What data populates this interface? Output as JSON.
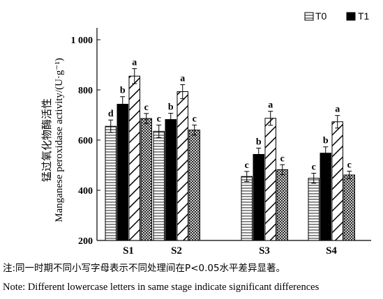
{
  "chart_data": {
    "type": "bar",
    "ylabel_cn": "锰过氧化物酶活性",
    "ylabel_en": "Manganese peroxidase activity/(U·g⁻¹)",
    "ylim": [
      200,
      1000
    ],
    "yticks": [
      200,
      400,
      600,
      800,
      1000
    ],
    "ytick_labels": [
      "200",
      "400",
      "600",
      "800",
      "1 000"
    ],
    "categories": [
      "S1",
      "S2",
      "S3",
      "S4"
    ],
    "legend": {
      "position": "top-right",
      "entries": [
        "T0",
        "T1"
      ]
    },
    "series": [
      {
        "name": "T0",
        "pattern": "horizontal-lines",
        "values": [
          655,
          635,
          455,
          448
        ],
        "errors": [
          25,
          25,
          20,
          20
        ],
        "letters": [
          "d",
          "c",
          "c",
          "c"
        ]
      },
      {
        "name": "T1",
        "pattern": "solid-black",
        "values": [
          743,
          682,
          543,
          548
        ],
        "errors": [
          30,
          25,
          25,
          25
        ],
        "letters": [
          "b",
          "b",
          "b",
          "b"
        ]
      },
      {
        "name": "",
        "pattern": "diagonal-hatch",
        "values": [
          855,
          793,
          687,
          673
        ],
        "errors": [
          30,
          28,
          28,
          25
        ],
        "letters": [
          "a",
          "a",
          "a",
          "a"
        ]
      },
      {
        "name": "",
        "pattern": "crosshatch",
        "values": [
          686,
          640,
          482,
          461
        ],
        "errors": [
          20,
          20,
          20,
          15
        ],
        "letters": [
          "c",
          "c",
          "c",
          "c"
        ]
      }
    ]
  },
  "notes": {
    "cn": "注:同一时期不同小写字母表示不同处理间在P<0.05水平差异显著。",
    "en": "Note: Different lowercase letters in same stage indicate significant differences"
  }
}
